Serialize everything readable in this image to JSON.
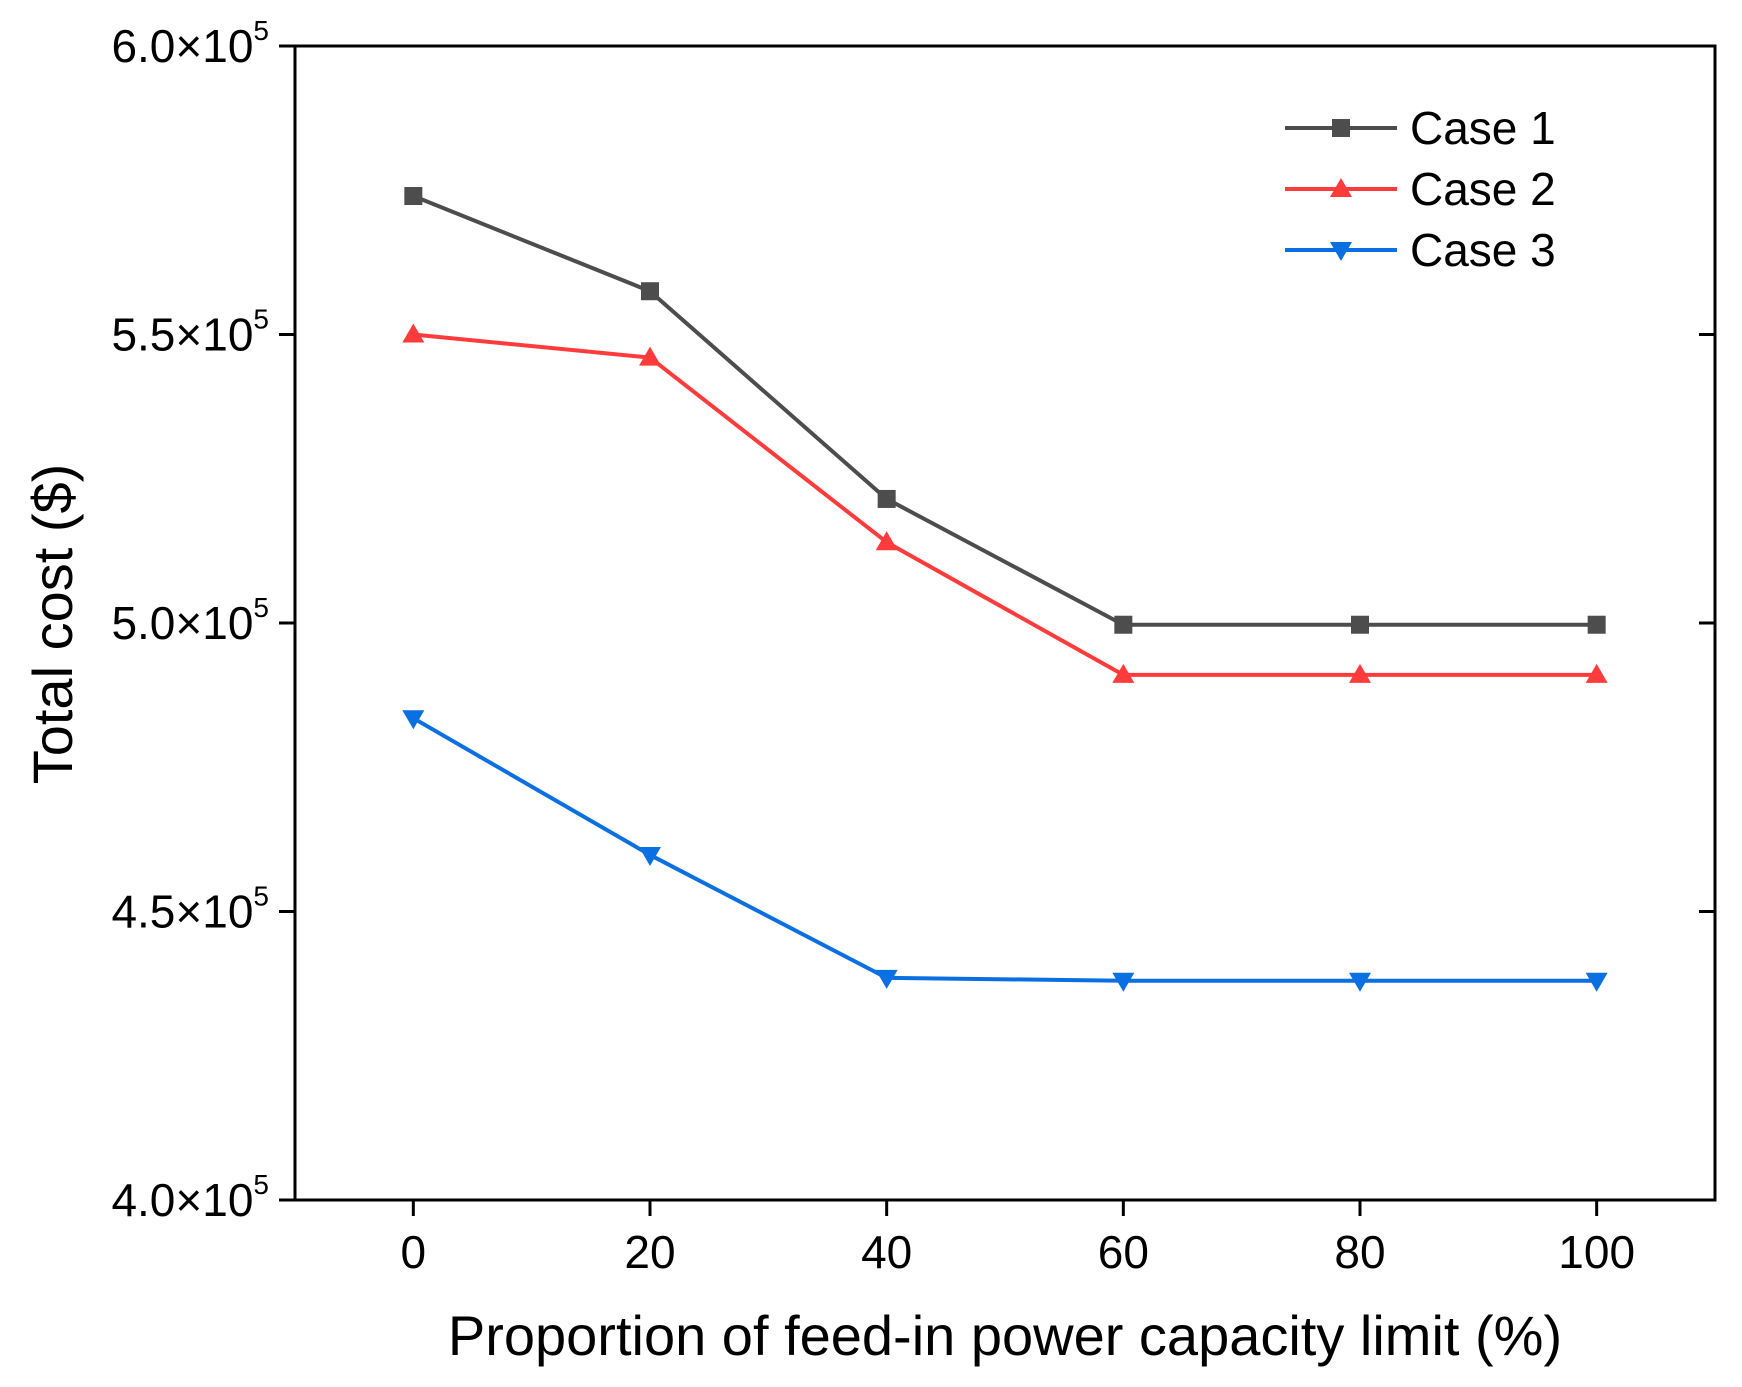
{
  "chart_data": {
    "type": "line",
    "title": "",
    "xlabel": "Proportion of feed-in power capacity limit (%)",
    "ylabel": "Total cost ($)",
    "xlim": [
      -10,
      110
    ],
    "ylim": [
      400000,
      600000
    ],
    "x": [
      0,
      20,
      40,
      60,
      80,
      100
    ],
    "xticks": [
      "0",
      "20",
      "40",
      "60",
      "80",
      "100"
    ],
    "yticks": [
      {
        "value": 400000,
        "mantissa": "4.0×10",
        "exp": "5"
      },
      {
        "value": 450000,
        "mantissa": "4.5×10",
        "exp": "5"
      },
      {
        "value": 500000,
        "mantissa": "5.0×10",
        "exp": "5"
      },
      {
        "value": 550000,
        "mantissa": "5.5×10",
        "exp": "5"
      },
      {
        "value": 600000,
        "mantissa": "6.0×10",
        "exp": "5"
      }
    ],
    "grid": false,
    "legend_position": "top-right",
    "series": [
      {
        "name": "Case 1",
        "color": "#4d4d4d",
        "marker": "square",
        "values": [
          574000,
          557500,
          521500,
          499700,
          499700,
          499700
        ]
      },
      {
        "name": "Case 2",
        "color": "#ff3b3b",
        "marker": "triangle-up",
        "values": [
          550000,
          546000,
          514000,
          491000,
          491000,
          491000
        ]
      },
      {
        "name": "Case 3",
        "color": "#0a6fe0",
        "marker": "triangle-down",
        "values": [
          483500,
          459800,
          438500,
          438000,
          438000,
          438000
        ]
      }
    ]
  }
}
